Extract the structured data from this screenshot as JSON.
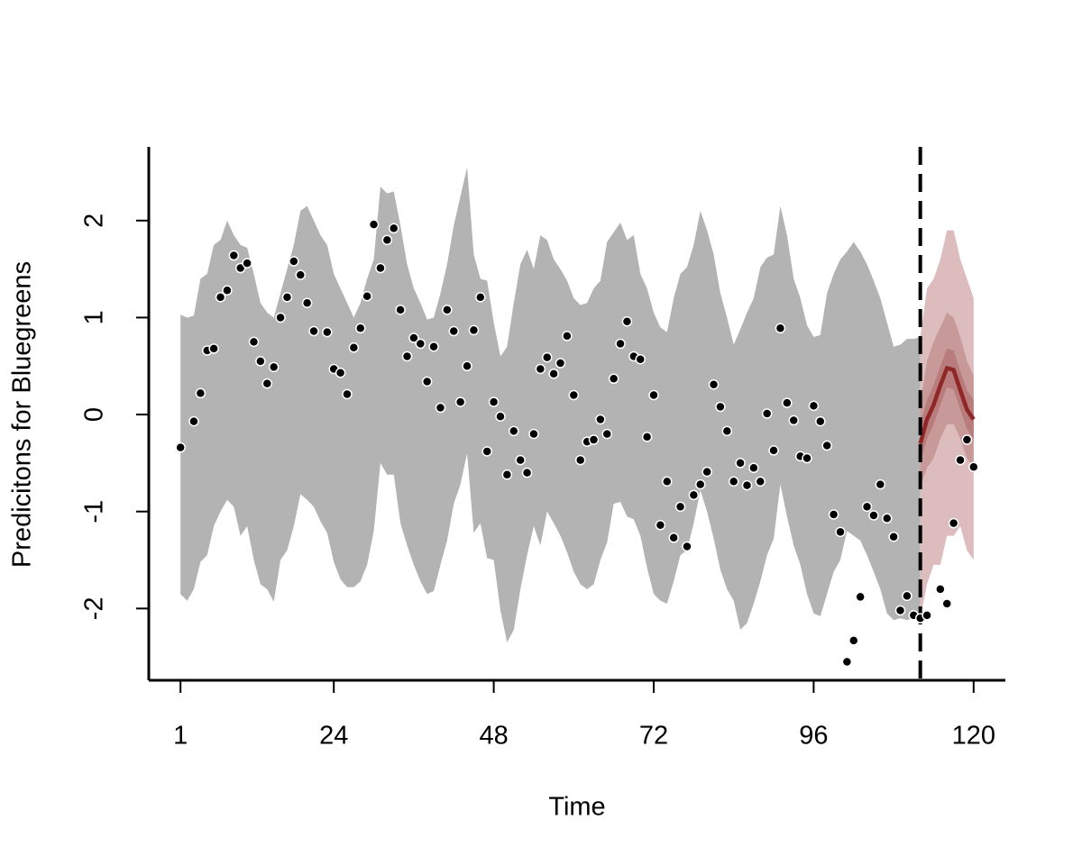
{
  "chart_data": {
    "type": "forecast",
    "xlabel": "Time",
    "ylabel": "Predicitons for Bluegreens",
    "xlim": [
      -3.76,
      124.76
    ],
    "ylim": [
      -2.74,
      2.76
    ],
    "xticks": [
      1,
      24,
      48,
      72,
      96,
      120
    ],
    "yticks": [
      -2,
      -1,
      0,
      1,
      2
    ],
    "vline": 112,
    "interval": {
      "color": "#b3b3b3",
      "x": [
        1,
        2,
        3,
        4,
        5,
        6,
        7,
        8,
        9,
        10,
        11,
        12,
        13,
        14,
        15,
        16,
        17,
        18,
        19,
        20,
        21,
        22,
        23,
        24,
        25,
        26,
        27,
        28,
        29,
        30,
        31,
        32,
        33,
        34,
        35,
        36,
        37,
        38,
        39,
        40,
        41,
        42,
        43,
        44,
        45,
        46,
        47,
        48,
        49,
        50,
        51,
        52,
        53,
        54,
        55,
        56,
        57,
        58,
        59,
        60,
        61,
        62,
        63,
        64,
        65,
        66,
        67,
        68,
        69,
        70,
        71,
        72,
        73,
        74,
        75,
        76,
        77,
        78,
        79,
        80,
        81,
        82,
        83,
        84,
        85,
        86,
        87,
        88,
        89,
        90,
        91,
        92,
        93,
        94,
        95,
        96,
        97,
        98,
        99,
        100,
        101,
        102,
        103,
        104,
        105,
        106,
        107,
        108,
        109,
        110,
        111,
        112
      ],
      "upper": [
        1.03,
        1.0,
        1.02,
        1.4,
        1.45,
        1.75,
        1.8,
        2.0,
        1.85,
        1.75,
        1.72,
        1.45,
        1.15,
        1.05,
        1.0,
        1.25,
        1.5,
        1.75,
        2.1,
        2.15,
        2.0,
        1.85,
        1.75,
        1.45,
        1.3,
        1.15,
        1.0,
        1.15,
        1.4,
        1.6,
        2.35,
        2.28,
        2.3,
        1.95,
        1.55,
        1.3,
        1.15,
        0.98,
        1.0,
        1.25,
        1.55,
        1.95,
        2.25,
        2.55,
        1.65,
        1.4,
        1.38,
        0.95,
        0.6,
        0.7,
        1.15,
        1.55,
        1.7,
        1.5,
        1.85,
        1.8,
        1.6,
        1.5,
        1.38,
        1.2,
        1.13,
        1.15,
        1.3,
        1.38,
        1.78,
        1.88,
        1.98,
        1.8,
        1.85,
        1.45,
        1.3,
        1.05,
        0.9,
        0.85,
        1.2,
        1.45,
        1.52,
        1.75,
        2.1,
        1.9,
        1.65,
        1.25,
        1.0,
        0.72,
        0.88,
        1.05,
        1.2,
        1.52,
        1.62,
        1.65,
        2.15,
        1.85,
        1.4,
        1.2,
        0.92,
        0.8,
        0.82,
        1.25,
        1.45,
        1.6,
        1.68,
        1.78,
        1.68,
        1.55,
        1.38,
        1.2,
        0.95,
        0.7,
        0.72,
        0.78,
        0.78,
        0.8
      ],
      "lower": [
        -1.85,
        -1.92,
        -1.8,
        -1.52,
        -1.45,
        -1.15,
        -1.0,
        -0.88,
        -0.95,
        -1.25,
        -1.15,
        -1.5,
        -1.75,
        -1.8,
        -1.93,
        -1.5,
        -1.4,
        -1.15,
        -0.82,
        -0.88,
        -0.95,
        -1.1,
        -1.22,
        -1.52,
        -1.7,
        -1.78,
        -1.78,
        -1.72,
        -1.55,
        -1.2,
        -0.5,
        -0.62,
        -0.62,
        -1.12,
        -1.35,
        -1.55,
        -1.72,
        -1.85,
        -1.82,
        -1.55,
        -1.3,
        -0.92,
        -0.72,
        -0.4,
        -1.22,
        -1.12,
        -1.48,
        -1.5,
        -2.02,
        -2.35,
        -2.22,
        -1.8,
        -1.45,
        -1.15,
        -1.35,
        -1.0,
        -1.12,
        -1.25,
        -1.42,
        -1.62,
        -1.75,
        -1.8,
        -1.75,
        -1.5,
        -1.32,
        -0.92,
        -0.9,
        -1.05,
        -1.08,
        -1.25,
        -1.58,
        -1.85,
        -1.92,
        -1.95,
        -1.72,
        -1.45,
        -1.4,
        -1.12,
        -0.78,
        -1.0,
        -1.28,
        -1.6,
        -1.8,
        -1.92,
        -2.22,
        -2.15,
        -1.95,
        -1.72,
        -1.45,
        -1.28,
        -0.72,
        -1.05,
        -1.35,
        -1.55,
        -1.85,
        -2.05,
        -2.08,
        -1.85,
        -1.62,
        -1.5,
        -1.2,
        -1.25,
        -1.3,
        -1.45,
        -1.62,
        -1.8,
        -2.05,
        -2.12,
        -2.1,
        -2.12,
        -2.1,
        -2.1
      ]
    },
    "forecast": {
      "x": [
        112,
        113,
        114,
        115,
        116,
        117,
        118,
        119,
        120
      ],
      "bands": [
        {
          "color": "#dcbcbc",
          "upper": [
            0.8,
            1.3,
            1.4,
            1.6,
            1.9,
            1.9,
            1.6,
            1.4,
            1.2
          ],
          "lower": [
            -2.1,
            -1.75,
            -1.55,
            -1.55,
            -1.25,
            -1.25,
            -1.15,
            -1.4,
            -1.5
          ]
        },
        {
          "color": "#c79999",
          "upper": [
            0.1,
            0.55,
            0.75,
            0.9,
            1.05,
            1.0,
            0.8,
            0.55,
            0.4
          ],
          "lower": [
            -0.75,
            -0.55,
            -0.45,
            -0.25,
            -0.1,
            -0.1,
            -0.25,
            -0.45,
            -0.55
          ]
        },
        {
          "color": "#b97c7c",
          "upper": [
            -0.1,
            0.15,
            0.3,
            0.5,
            0.68,
            0.66,
            0.45,
            0.25,
            0.15
          ],
          "lower": [
            -0.5,
            -0.25,
            -0.1,
            0.1,
            0.28,
            0.26,
            0.05,
            -0.15,
            -0.25
          ]
        }
      ],
      "median": [
        -0.3,
        -0.05,
        0.1,
        0.3,
        0.48,
        0.46,
        0.25,
        0.05,
        -0.05
      ],
      "median_color": "#8f2727"
    },
    "points": {
      "color": "#000000",
      "x": [
        1,
        2,
        3,
        4,
        5,
        6,
        7,
        8,
        9,
        10,
        11,
        12,
        13,
        14,
        15,
        16,
        17,
        18,
        19,
        20,
        21,
        22,
        23,
        24,
        25,
        26,
        27,
        28,
        29,
        30,
        31,
        32,
        33,
        34,
        35,
        36,
        37,
        38,
        39,
        40,
        41,
        42,
        43,
        44,
        45,
        46,
        47,
        48,
        49,
        50,
        51,
        52,
        53,
        54,
        55,
        56,
        57,
        58,
        59,
        60,
        61,
        62,
        63,
        64,
        65,
        66,
        67,
        68,
        69,
        70,
        71,
        72,
        73,
        74,
        75,
        76,
        77,
        78,
        79,
        80,
        81,
        82,
        83,
        84,
        85,
        86,
        87,
        88,
        89,
        90,
        91,
        92,
        93,
        94,
        95,
        96,
        97,
        98,
        99,
        100,
        101,
        102,
        103,
        104,
        105,
        106,
        107,
        108,
        109,
        110,
        111,
        112,
        113,
        114,
        115,
        116,
        117,
        118,
        119,
        120
      ],
      "values": [
        -0.34,
        null,
        -0.07,
        0.22,
        0.66,
        0.68,
        1.21,
        1.28,
        1.64,
        1.51,
        1.56,
        0.75,
        0.55,
        0.32,
        0.49,
        1.0,
        1.21,
        1.58,
        1.44,
        1.15,
        0.86,
        null,
        0.85,
        0.47,
        0.43,
        0.21,
        0.69,
        0.89,
        1.22,
        1.96,
        1.51,
        1.8,
        1.92,
        1.08,
        0.6,
        0.79,
        0.73,
        0.34,
        0.7,
        0.07,
        1.08,
        0.86,
        0.13,
        0.5,
        0.87,
        1.21,
        -0.38,
        0.13,
        -0.02,
        -0.62,
        -0.17,
        -0.47,
        -0.6,
        -0.2,
        0.47,
        0.59,
        0.42,
        0.53,
        0.81,
        0.2,
        -0.47,
        -0.28,
        -0.26,
        -0.05,
        -0.2,
        0.37,
        0.73,
        0.96,
        0.6,
        0.57,
        -0.23,
        0.2,
        -1.14,
        -0.69,
        -1.27,
        -0.95,
        -1.36,
        -0.83,
        -0.72,
        -0.59,
        0.31,
        0.08,
        -0.17,
        -0.69,
        -0.5,
        -0.73,
        -0.55,
        -0.69,
        0.01,
        -0.37,
        0.89,
        0.12,
        -0.06,
        -0.43,
        -0.45,
        0.09,
        -0.07,
        -0.32,
        -1.03,
        -1.21,
        -2.55,
        -2.33,
        -1.88,
        -0.95,
        -1.04,
        -0.72,
        -1.07,
        -1.26,
        -2.02,
        -1.87,
        -2.07,
        -2.1,
        -2.07,
        null,
        -1.8,
        -1.95,
        -1.12,
        -0.47,
        -0.26,
        -0.54
      ]
    }
  }
}
